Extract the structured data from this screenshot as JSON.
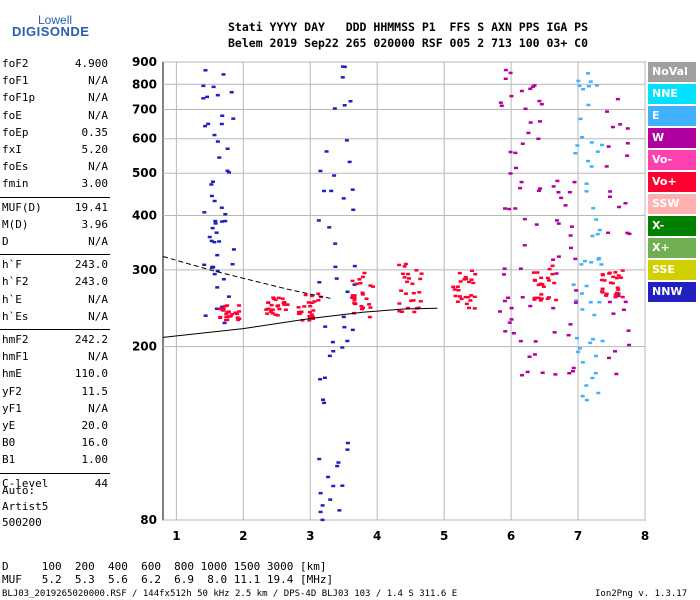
{
  "logo": {
    "line1": "Lowell",
    "line2": "DIGISONDE"
  },
  "header": {
    "line1": "Stati YYYY DAY   DDD HHMMSS P1  FFS S AXN PPS IGA PS",
    "line2": "Belem 2019 Sep22 265 020000 RSF 005 2 713 100 03+ C0"
  },
  "params": [
    {
      "label": "foF2",
      "value": "4.900"
    },
    {
      "label": "foF1",
      "value": "N/A"
    },
    {
      "label": "foF1p",
      "value": "N/A"
    },
    {
      "label": "foE",
      "value": "N/A"
    },
    {
      "label": "foEp",
      "value": "0.35"
    },
    {
      "label": "fxI",
      "value": "5.20"
    },
    {
      "label": "foEs",
      "value": "N/A"
    },
    {
      "label": "fmin",
      "value": "3.00"
    },
    {
      "label": "MUF(D)",
      "value": "19.41"
    },
    {
      "label": "M(D)",
      "value": "3.96"
    },
    {
      "label": "D",
      "value": "N/A"
    },
    {
      "label": "h`F",
      "value": "243.0"
    },
    {
      "label": "h`F2",
      "value": "243.0"
    },
    {
      "label": "h`E",
      "value": "N/A"
    },
    {
      "label": "h`Es",
      "value": "N/A"
    },
    {
      "label": "hmF2",
      "value": "242.2"
    },
    {
      "label": "hmF1",
      "value": "N/A"
    },
    {
      "label": "hmE",
      "value": "110.0"
    },
    {
      "label": "yF2",
      "value": "11.5"
    },
    {
      "label": "yF1",
      "value": "N/A"
    },
    {
      "label": "yE",
      "value": "20.0"
    },
    {
      "label": "B0",
      "value": "16.0"
    },
    {
      "label": "B1",
      "value": "1.00"
    },
    {
      "label": "C-level",
      "value": "44"
    }
  ],
  "auto": {
    "line1": "Auto:",
    "line2": "Artist5",
    "line3": "500200"
  },
  "legend": [
    {
      "label": "NoVal",
      "color": "#a0a0a0"
    },
    {
      "label": "NNE",
      "color": "#00e0ff"
    },
    {
      "label": "E",
      "color": "#40b0ff"
    },
    {
      "label": "W",
      "color": "#b000a0"
    },
    {
      "label": "Vo-",
      "color": "#ff40b0"
    },
    {
      "label": "Vo+",
      "color": "#ff0030"
    },
    {
      "label": "SSW",
      "color": "#ffb0b0"
    },
    {
      "label": "X-",
      "color": "#008000"
    },
    {
      "label": "X+",
      "color": "#70b050"
    },
    {
      "label": "SSE",
      "color": "#d0d000"
    },
    {
      "label": "NNW",
      "color": "#2020c0"
    }
  ],
  "footer": {
    "d_row": "D     100  200  400  600  800 1000 1500 3000 [km]",
    "muf_row": "MUF   5.2  5.3  5.6  6.2  6.9  8.0 11.1 19.4 [MHz]",
    "file_info": "BLJ03_2019265020000.RSF / 144fx512h 50 kHz 2.5 km / DPS-4D BLJ03 103 / 1.4 S 311.6 E",
    "version": "Ion2Png v. 1.3.17"
  },
  "chart_data": {
    "type": "scatter",
    "title": "",
    "xlabel": "",
    "ylabel": "",
    "xlim": [
      0.8,
      8.0
    ],
    "ylim": [
      80,
      900
    ],
    "x_ticks": [
      "1",
      "2",
      "3",
      "4",
      "5",
      "6",
      "7",
      "8"
    ],
    "y_ticks": [
      "80",
      "200",
      "300",
      "400",
      "500",
      "600",
      "700",
      "800",
      "900"
    ],
    "y_scale": "log",
    "grid": true,
    "clusters": [
      {
        "name": "NNW",
        "color": "#2020c0",
        "x": [
          1.55,
          1.7,
          3.3,
          3.5
        ],
        "y_min": [
          220,
          220,
          80,
          80
        ],
        "y_max": [
          880,
          800,
          650,
          900
        ]
      },
      {
        "name": "Vo+",
        "color": "#ff0030",
        "x": [
          1.8,
          2.5,
          3.0,
          3.8,
          4.5,
          5.3,
          6.5,
          7.5
        ],
        "y_min": [
          230,
          235,
          230,
          230,
          240,
          245,
          250,
          260
        ],
        "y_max": [
          250,
          260,
          265,
          300,
          310,
          300,
          310,
          300
        ]
      },
      {
        "name": "E",
        "color": "#40b0ff",
        "x": [
          7.1,
          7.2
        ],
        "y_min": [
          150,
          150
        ],
        "y_max": [
          900,
          900
        ]
      },
      {
        "name": "W",
        "color": "#b000a0",
        "x": [
          6.0,
          6.3,
          6.8,
          7.6
        ],
        "y_min": [
          170,
          170,
          170,
          170
        ],
        "y_max": [
          880,
          880,
          500,
          880
        ]
      }
    ],
    "o_trace": {
      "x": [
        0.8,
        2.0,
        3.0,
        3.8,
        4.4,
        4.9
      ],
      "y": [
        210,
        220,
        232,
        240,
        244,
        245
      ]
    },
    "x_trace": {
      "x": [
        0.8,
        1.5,
        2.0,
        2.7,
        3.3
      ],
      "y": [
        322,
        300,
        287,
        270,
        258
      ]
    }
  }
}
